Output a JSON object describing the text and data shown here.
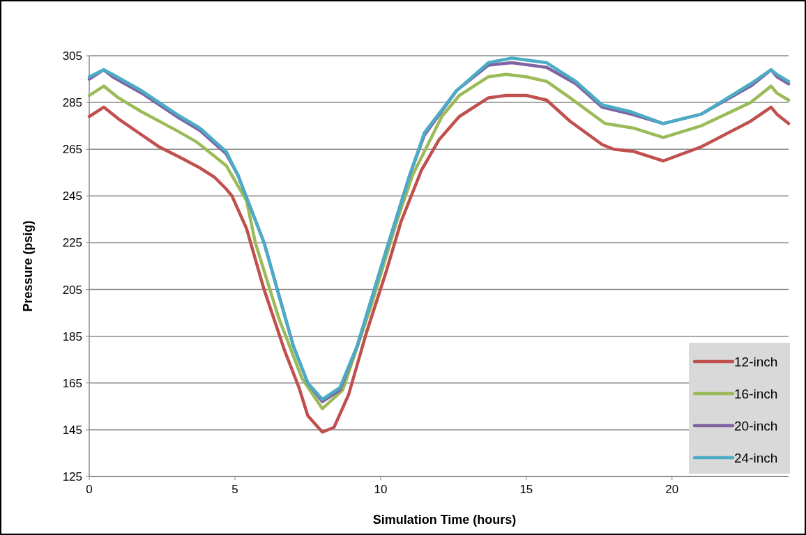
{
  "chart_data": {
    "type": "line",
    "xlabel": "Simulation Time (hours)",
    "ylabel": "Pressure (psig)",
    "xlim": [
      0,
      24
    ],
    "xticks": [
      0,
      5,
      10,
      15,
      20
    ],
    "ylim": [
      125,
      305
    ],
    "yticks": [
      125,
      145,
      165,
      185,
      205,
      225,
      245,
      265,
      285,
      305
    ],
    "grid": "y",
    "legend": "bottom right",
    "line_style": "solid",
    "marker": "none",
    "series": [
      {
        "name": "12-inch",
        "color": "#c0504d",
        "x": [
          0,
          0.5,
          1.0,
          1.7,
          2.4,
          3.2,
          3.8,
          4.3,
          4.7,
          4.9,
          5.4,
          6.0,
          6.7,
          7.2,
          7.5,
          8.0,
          8.4,
          8.9,
          9.5,
          10.2,
          10.7,
          11.4,
          12.0,
          12.7,
          13.7,
          14.3,
          15.0,
          15.7,
          16.5,
          17.6,
          18.0,
          18.7,
          19.7,
          21.0,
          22.7,
          23.4,
          23.6,
          24.0
        ],
        "values": [
          279,
          283,
          278,
          272,
          266,
          261,
          257,
          253,
          248,
          245,
          231,
          205,
          179,
          163,
          151,
          144,
          146,
          160,
          186,
          213,
          234,
          256,
          269,
          279,
          287,
          288,
          288,
          286,
          277,
          267,
          265,
          264,
          260,
          266,
          277,
          283,
          280,
          276
        ]
      },
      {
        "name": "16-inch",
        "color": "#9bbb59",
        "x": [
          0,
          0.5,
          1.0,
          1.8,
          3.0,
          3.7,
          4.7,
          5.4,
          5.7,
          6.5,
          7.3,
          8.0,
          8.7,
          9.7,
          10.55,
          11.1,
          12.1,
          12.7,
          13.7,
          14.3,
          15.0,
          15.7,
          16.5,
          17.7,
          18.7,
          19.7,
          21.0,
          22.7,
          23.4,
          23.6,
          24.0
        ],
        "values": [
          288,
          292,
          287,
          281,
          273,
          268,
          258,
          243,
          225,
          193,
          167,
          154,
          162,
          199,
          234,
          254,
          279,
          288,
          296,
          297,
          296,
          294,
          287,
          276,
          274,
          270,
          275,
          285,
          292,
          289,
          286
        ]
      },
      {
        "name": "20-inch",
        "color": "#8064a2",
        "x": [
          0,
          0.5,
          0.8,
          1.8,
          3.0,
          3.8,
          4.7,
          5.1,
          6.0,
          7.0,
          7.5,
          8.0,
          8.6,
          9.2,
          10.2,
          11.0,
          11.5,
          12.6,
          13.7,
          14.5,
          15.7,
          16.7,
          17.6,
          18.6,
          19.7,
          21.0,
          22.7,
          23.4,
          23.6,
          24.0
        ],
        "values": [
          295,
          299,
          296,
          289,
          279,
          273,
          263,
          254,
          225,
          181,
          165,
          157,
          162,
          181,
          222,
          254,
          271,
          290,
          301,
          302,
          300,
          293,
          283,
          280,
          276,
          280,
          292,
          299,
          296,
          293
        ]
      },
      {
        "name": "24-inch",
        "color": "#4bacc6",
        "x": [
          0,
          0.5,
          0.8,
          1.8,
          3.0,
          3.8,
          4.7,
          5.1,
          6.0,
          7.0,
          7.5,
          8.0,
          8.6,
          9.2,
          10.2,
          11.0,
          11.5,
          12.6,
          13.7,
          14.5,
          15.7,
          16.7,
          17.6,
          18.6,
          19.7,
          21.0,
          22.7,
          23.4,
          23.6,
          24.0
        ],
        "values": [
          296,
          299,
          297,
          290,
          280,
          274,
          264,
          254,
          225,
          181,
          165,
          158,
          163,
          181,
          222,
          254,
          272,
          290,
          302,
          304,
          302,
          294,
          284,
          281,
          276,
          280,
          293,
          299,
          297,
          294
        ]
      }
    ]
  }
}
